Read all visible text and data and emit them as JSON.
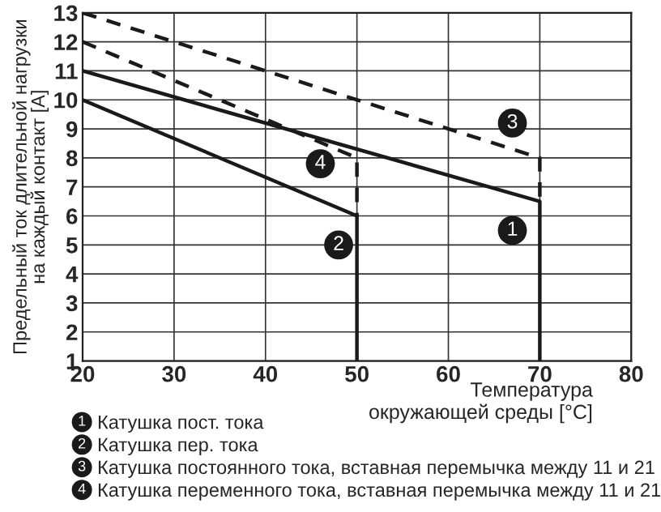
{
  "chart_data": {
    "type": "line",
    "xlabel": "Температура\nокружающей среды [°C]",
    "ylabel": "Предельный ток длительной нагрузки\nна каждый контакт [A]",
    "series": [
      {
        "name": "Катушка пост. тока",
        "color": "#1a1a1a",
        "line_style": "solid",
        "x": [
          20,
          70,
          70
        ],
        "values": [
          11,
          6.5,
          1
        ]
      },
      {
        "name": "Катушка пер. тока",
        "color": "#1a1a1a",
        "line_style": "solid",
        "x": [
          20,
          50,
          50
        ],
        "values": [
          10,
          6,
          1
        ]
      },
      {
        "name": "Катушка постоянного тока, вставная перемычка между 11 и 21",
        "color": "#1a1a1a",
        "line_style": "dashed",
        "x": [
          20,
          70,
          70
        ],
        "values": [
          13,
          8,
          6.5
        ]
      },
      {
        "name": "Катушка переменного тока, вставная перемычка между 11 и 21",
        "color": "#1a1a1a",
        "line_style": "dashed",
        "x": [
          20,
          50,
          50
        ],
        "values": [
          12,
          8,
          6
        ]
      }
    ],
    "annotations": [
      {
        "text": "1",
        "x": 67,
        "y": 5.5
      },
      {
        "text": "2",
        "x": 48,
        "y": 5
      },
      {
        "text": "3",
        "x": 67,
        "y": 9.2
      },
      {
        "text": "4",
        "x": 46,
        "y": 7.8
      }
    ],
    "xlim": [
      20,
      80
    ],
    "xticks": [
      20,
      30,
      40,
      50,
      60,
      70,
      80
    ],
    "ylim": [
      1,
      13
    ],
    "yticks": [
      1,
      2,
      3,
      4,
      5,
      6,
      7,
      8,
      9,
      10,
      11,
      12,
      13
    ],
    "grid": true,
    "legend": "bottom",
    "marker": "none"
  }
}
